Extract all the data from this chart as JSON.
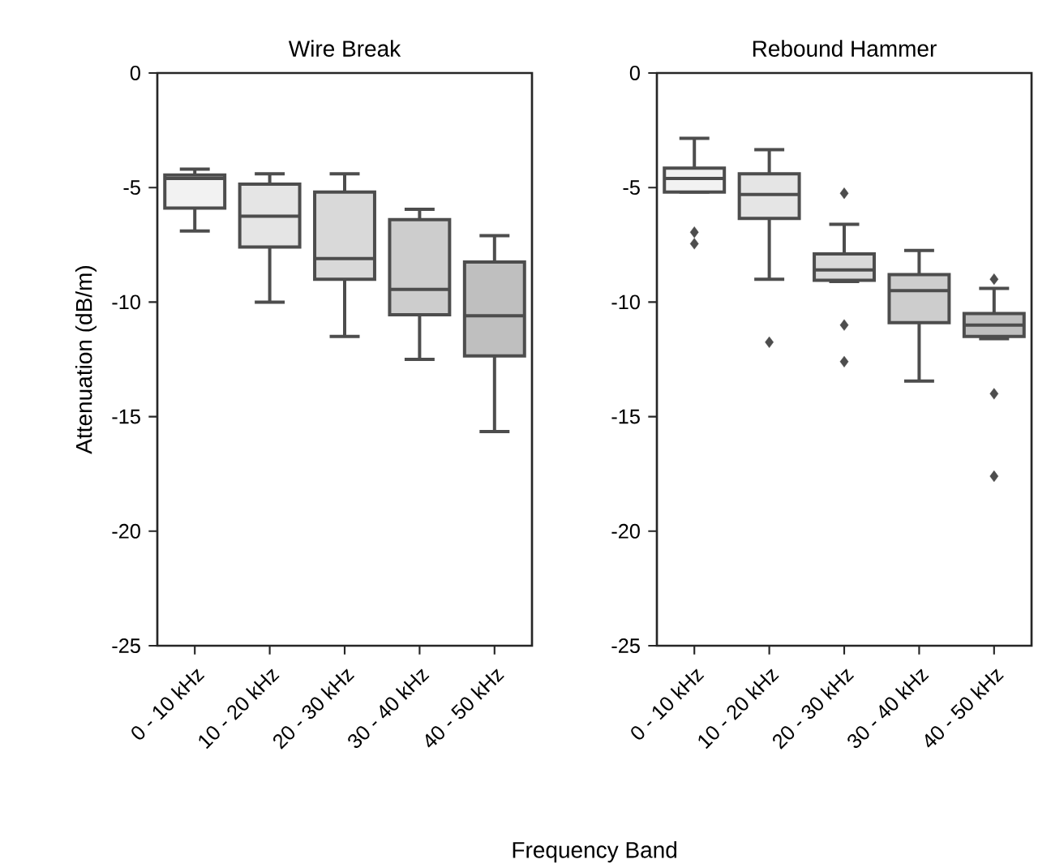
{
  "chart_data": [
    {
      "type": "box",
      "title": "Wire Break",
      "ylabel": "Attenuation (dB/m)",
      "xlabel": "Frequency Band",
      "categories": [
        "0 - 10 kHz",
        "10 - 20 kHz",
        "20 - 30 kHz",
        "30 - 40 kHz",
        "40 - 50 kHz"
      ],
      "colors": [
        "#f2f2f2",
        "#e5e5e5",
        "#d9d9d9",
        "#cdcdcd",
        "#bfbfbf"
      ],
      "ylim": [
        -25,
        0
      ],
      "yticks": [
        -25,
        -20,
        -15,
        -10,
        -5,
        0
      ],
      "marker": "diamond",
      "boxes": [
        {
          "low": -6.9,
          "q1": -5.9,
          "median": -4.6,
          "q3": -4.45,
          "high": -4.2
        },
        {
          "low": -10.0,
          "q1": -7.6,
          "median": -6.25,
          "q3": -4.85,
          "high": -4.4
        },
        {
          "low": -11.5,
          "q1": -9.0,
          "median": -8.1,
          "q3": -5.2,
          "high": -4.4
        },
        {
          "low": -12.5,
          "q1": -10.55,
          "median": -9.45,
          "q3": -6.4,
          "high": -5.95
        },
        {
          "low": -15.65,
          "q1": -12.35,
          "median": -10.6,
          "q3": -8.25,
          "high": -7.1
        }
      ]
    },
    {
      "type": "box",
      "title": "Rebound Hammer",
      "categories": [
        "0 - 10 kHz",
        "10 - 20 kHz",
        "20 - 30 kHz",
        "30 - 40 kHz",
        "40 - 50 kHz"
      ],
      "colors": [
        "#f2f2f2",
        "#e5e5e5",
        "#d9d9d9",
        "#cdcdcd",
        "#bfbfbf"
      ],
      "ylim": [
        -25,
        0
      ],
      "yticks": [
        -25,
        -20,
        -15,
        -10,
        -5,
        0
      ],
      "marker": "diamond",
      "boxes": [
        {
          "low": -5.2,
          "q1": -5.2,
          "median": -4.6,
          "q3": -4.15,
          "high": -2.85,
          "outliers": [
            -6.95,
            -7.45
          ]
        },
        {
          "low": -9.0,
          "q1": -6.35,
          "median": -5.3,
          "q3": -4.4,
          "high": -3.35,
          "outliers": [
            -11.75
          ]
        },
        {
          "low": -9.1,
          "q1": -9.05,
          "median": -8.6,
          "q3": -7.9,
          "high": -6.6,
          "outliers": [
            -5.25,
            -11.0,
            -12.6
          ]
        },
        {
          "low": -13.45,
          "q1": -10.9,
          "median": -9.5,
          "q3": -8.8,
          "high": -7.75
        },
        {
          "low": -11.6,
          "q1": -11.5,
          "median": -11.0,
          "q3": -10.5,
          "high": -9.4,
          "outliers": [
            -9.0,
            -14.0,
            -17.6
          ]
        }
      ]
    }
  ]
}
